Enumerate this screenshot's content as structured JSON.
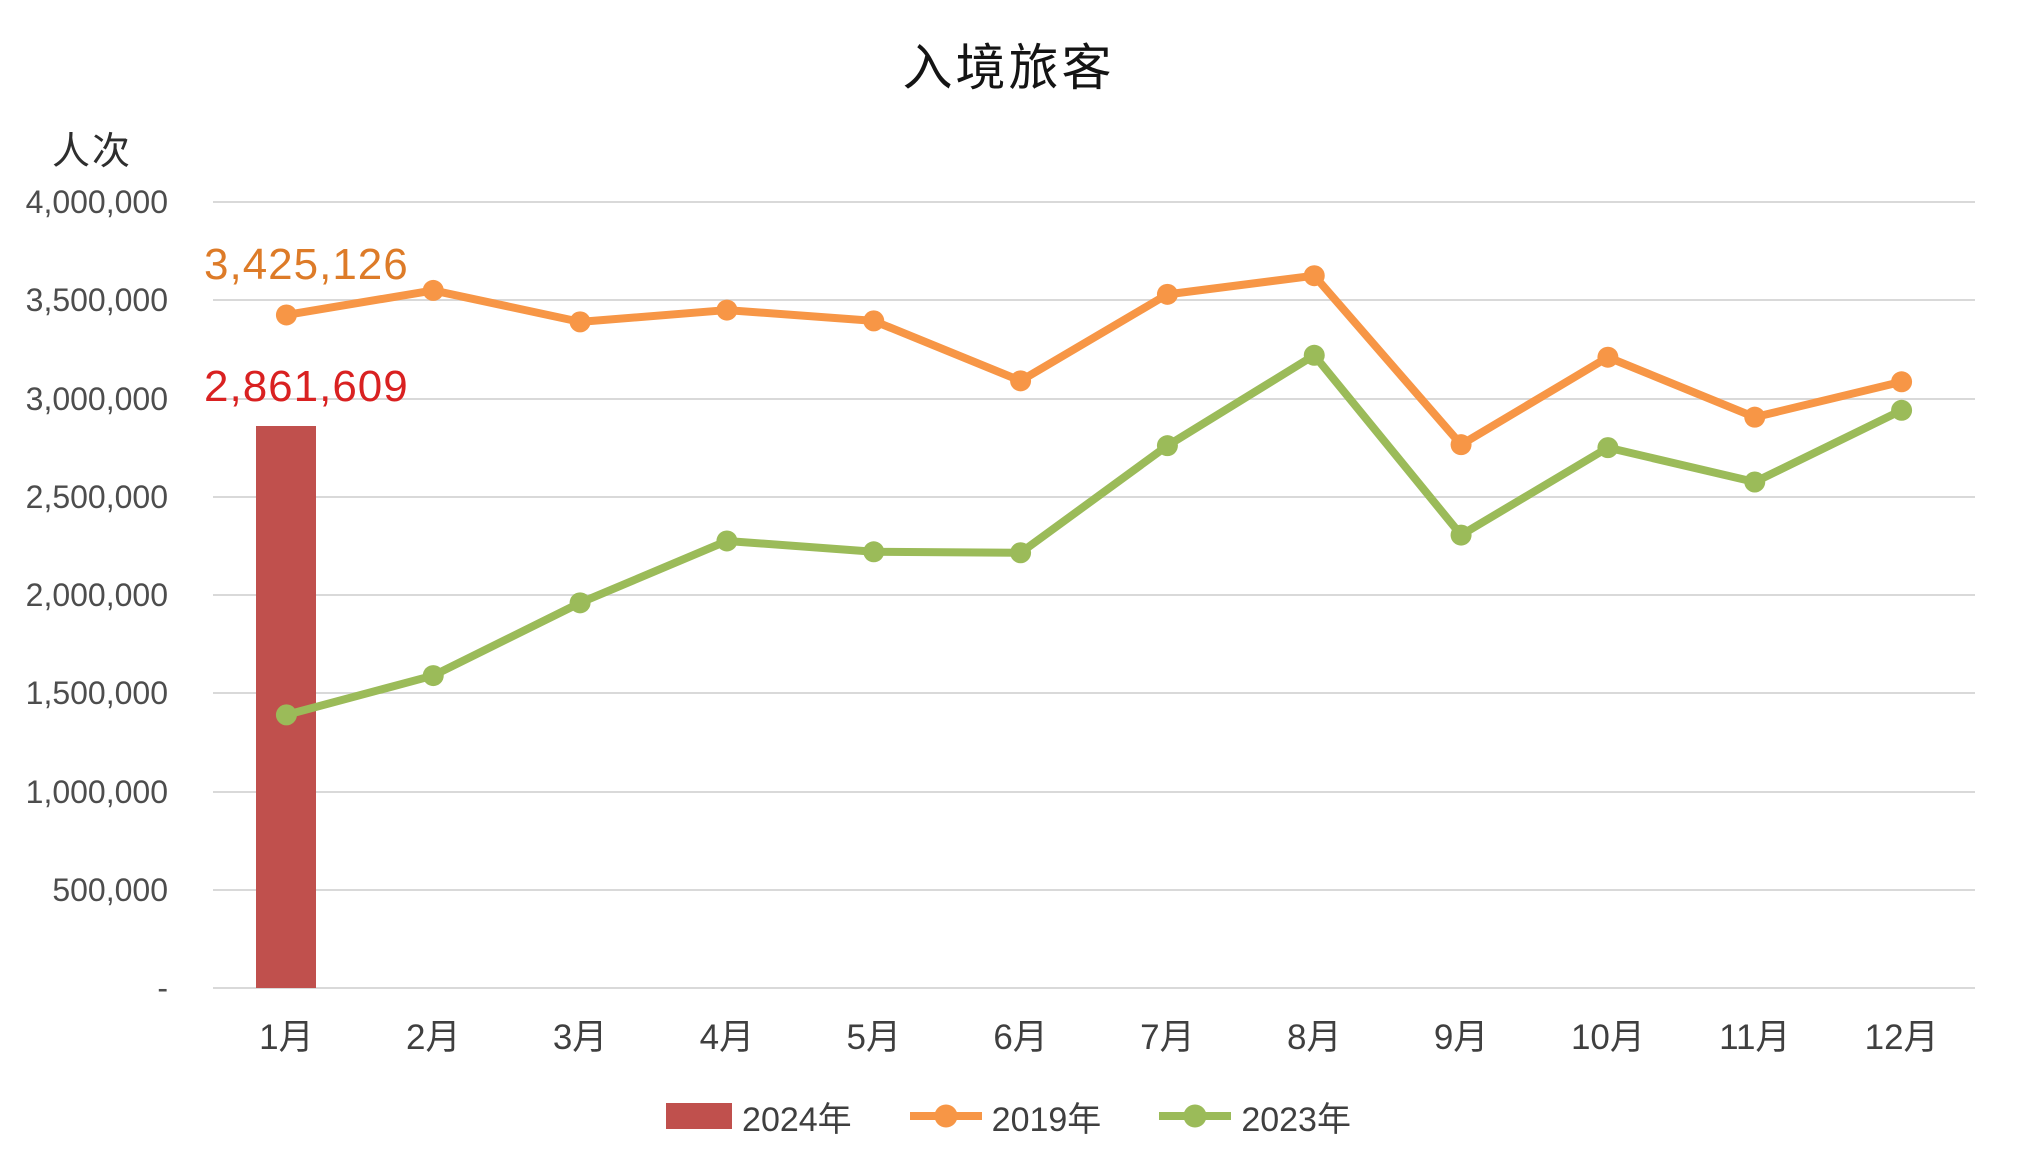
{
  "chart_data": {
    "type": "combo",
    "title": "入境旅客",
    "categories": [
      "1月",
      "2月",
      "3月",
      "4月",
      "5月",
      "6月",
      "7月",
      "8月",
      "9月",
      "10月",
      "11月",
      "12月"
    ],
    "y_axis": {
      "unit": "人次",
      "min": 0,
      "max": 4000000,
      "tick_step": 500000,
      "tick_labels": [
        "4,000,000",
        "3,500,000",
        "3,000,000",
        "2,500,000",
        "2,000,000",
        "1,500,000",
        "1,000,000",
        "500,000",
        "-"
      ]
    },
    "grid": "horizontal-only",
    "legend_position": "bottom",
    "series": [
      {
        "name": "2024年",
        "type": "bar",
        "color": "#C0504D",
        "values": [
          2861609,
          null,
          null,
          null,
          null,
          null,
          null,
          null,
          null,
          null,
          null,
          null
        ]
      },
      {
        "name": "2019年",
        "type": "line",
        "color": "#F79646",
        "values": [
          3425126,
          3550000,
          3390000,
          3450000,
          3395000,
          3090000,
          3530000,
          3625000,
          2765000,
          3210000,
          2905000,
          3085000
        ]
      },
      {
        "name": "2023年",
        "type": "line",
        "color": "#9BBB59",
        "values": [
          1390000,
          1590000,
          1960000,
          2275000,
          2220000,
          2215000,
          2760000,
          3220000,
          2305000,
          2750000,
          2575000,
          2940000
        ]
      }
    ],
    "data_labels": [
      {
        "series": "2019年",
        "category": "1月",
        "text": "3,425,126",
        "color": "#DD7B28"
      },
      {
        "series": "2024年",
        "category": "1月",
        "text": "2,861,609",
        "color": "#D92121"
      }
    ]
  }
}
